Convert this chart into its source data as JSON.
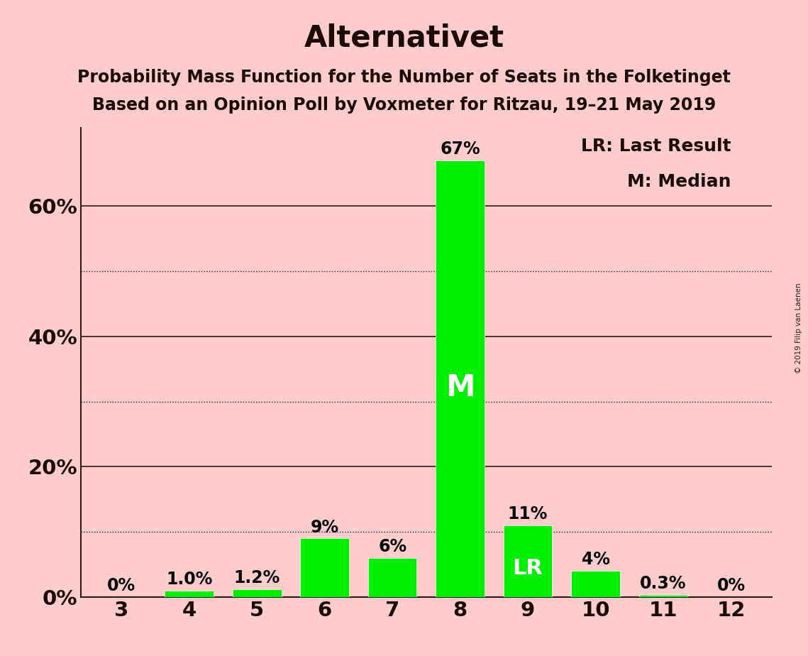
{
  "title": "Alternativet",
  "subtitle1": "Probability Mass Function for the Number of Seats in the Folketinget",
  "subtitle2": "Based on an Opinion Poll by Voxmeter for Ritzau, 19–21 May 2019",
  "watermark": "© 2019 Filip van Laenen",
  "legend_lr": "LR: Last Result",
  "legend_m": "M: Median",
  "seats": [
    3,
    4,
    5,
    6,
    7,
    8,
    9,
    10,
    11,
    12
  ],
  "values": [
    0.0,
    1.0,
    1.2,
    9.0,
    6.0,
    67.0,
    11.0,
    4.0,
    0.3,
    0.0
  ],
  "bar_labels": [
    "0%",
    "1.0%",
    "1.2%",
    "9%",
    "6%",
    "67%",
    "11%",
    "4%",
    "0.3%",
    "0%"
  ],
  "bar_color": "#00ee00",
  "background_color": "#ffcccc",
  "title_fontsize": 30,
  "subtitle_fontsize": 17,
  "label_fontsize": 17,
  "tick_fontsize": 21,
  "legend_fontsize": 18,
  "median_seat": 8,
  "last_result_seat": 9,
  "ylim": [
    0,
    72
  ],
  "yticks": [
    0,
    20,
    40,
    60
  ],
  "ytick_labels": [
    "0%",
    "20%",
    "40%",
    "60%"
  ],
  "solid_gridlines": [
    20,
    40,
    60
  ],
  "dotted_gridlines": [
    10,
    30,
    50
  ]
}
